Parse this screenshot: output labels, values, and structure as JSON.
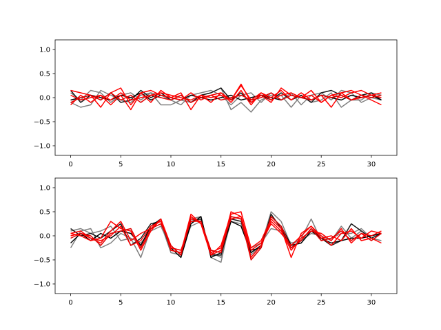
{
  "chart_data": [
    {
      "type": "line",
      "panel": "top",
      "title": "",
      "xlabel": "",
      "ylabel": "",
      "xlim": [
        -1.55,
        32.55
      ],
      "ylim": [
        -1.2,
        1.2
      ],
      "grid": false,
      "legend": "none",
      "x": [
        0,
        1,
        2,
        3,
        4,
        5,
        6,
        7,
        8,
        9,
        10,
        11,
        12,
        13,
        14,
        15,
        16,
        17,
        18,
        19,
        20,
        21,
        22,
        23,
        24,
        25,
        26,
        27,
        28,
        29,
        30,
        31
      ],
      "xticks": [
        0,
        5,
        10,
        15,
        20,
        25,
        30
      ],
      "xtick_labels": [
        "0",
        "5",
        "10",
        "15",
        "20",
        "25",
        "30"
      ],
      "yticks": [
        1.0,
        0.5,
        0.0,
        -0.5,
        -1.0
      ],
      "ytick_labels": [
        "1.0",
        "0.5",
        "0.0",
        "−0.5",
        "−1.0"
      ],
      "series": [
        {
          "color": "#808080",
          "values": [
            -0.1,
            -0.2,
            -0.15,
            0.15,
            0.05,
            -0.05,
            -0.1,
            0.05,
            0.1,
            -0.15,
            -0.15,
            -0.05,
            -0.1,
            0.05,
            0.1,
            0.2,
            -0.25,
            -0.1,
            -0.3,
            -0.05,
            0.05,
            0.05,
            -0.2,
            0.05,
            -0.1,
            -0.05,
            0.1,
            -0.2,
            -0.05,
            -0.05,
            0.1,
            0.05
          ]
        },
        {
          "color": "#808080",
          "values": [
            0.1,
            -0.05,
            0.15,
            0.1,
            -0.1,
            0.05,
            0.1,
            -0.05,
            0.1,
            0.05,
            -0.05,
            -0.15,
            0.05,
            0.1,
            0.15,
            0.05,
            -0.15,
            0.05,
            0.1,
            -0.1,
            0.1,
            -0.05,
            0.1,
            -0.15,
            0.05,
            0.1,
            -0.05,
            0.15,
            0.1,
            -0.1,
            0.0,
            -0.05
          ]
        },
        {
          "color": "#1a1a1a",
          "values": [
            0.15,
            -0.1,
            0.05,
            -0.05,
            0.1,
            -0.1,
            -0.05,
            0.15,
            0.0,
            0.1,
            -0.05,
            0.05,
            -0.1,
            0.05,
            0.1,
            0.2,
            -0.05,
            0.1,
            -0.1,
            0.05,
            -0.05,
            0.1,
            -0.05,
            0.05,
            -0.1,
            0.1,
            0.15,
            0.05,
            -0.05,
            0.05,
            0.1,
            -0.05
          ]
        },
        {
          "color": "#000000",
          "values": [
            -0.05,
            0.0,
            0.05,
            0.0,
            -0.05,
            0.05,
            0.0,
            0.1,
            -0.05,
            0.05,
            0.0,
            -0.05,
            0.05,
            0.0,
            -0.05,
            0.0,
            0.05,
            -0.05,
            0.0,
            0.05,
            0.0,
            -0.05,
            0.05,
            0.0,
            -0.05,
            0.05,
            0.0,
            -0.05,
            0.05,
            0.0,
            0.05,
            -0.05
          ]
        },
        {
          "color": "#ff0000",
          "values": [
            0.15,
            0.1,
            0.05,
            -0.2,
            0.1,
            0.2,
            -0.15,
            0.1,
            0.15,
            0.05,
            0.0,
            0.1,
            -0.25,
            0.05,
            -0.1,
            0.1,
            -0.05,
            0.28,
            -0.1,
            0.05,
            -0.1,
            0.2,
            0.05,
            0.0,
            0.05,
            -0.1,
            0.05,
            0.0,
            0.1,
            0.15,
            0.05,
            0.1
          ]
        },
        {
          "color": "#ff0000",
          "values": [
            -0.15,
            0.05,
            -0.1,
            0.05,
            -0.15,
            0.05,
            -0.25,
            0.1,
            -0.1,
            0.15,
            0.0,
            -0.05,
            0.1,
            -0.05,
            0.05,
            0.1,
            -0.1,
            0.15,
            -0.15,
            0.1,
            0.0,
            0.15,
            -0.05,
            0.1,
            -0.05,
            0.05,
            -0.2,
            0.1,
            0.15,
            0.05,
            -0.05,
            -0.15
          ]
        },
        {
          "color": "#ff0000",
          "values": [
            0.05,
            -0.05,
            0.0,
            0.05,
            -0.05,
            0.1,
            -0.05,
            0.0,
            0.05,
            0.1,
            0.05,
            0.0,
            -0.05,
            0.05,
            0.0,
            0.05,
            -0.05,
            0.25,
            -0.05,
            0.1,
            -0.05,
            0.05,
            0.1,
            0.0,
            0.15,
            -0.1,
            0.05,
            0.1,
            -0.05,
            0.0,
            0.05,
            0.0
          ]
        },
        {
          "color": "#e00000",
          "values": [
            -0.1,
            0.0,
            0.05,
            -0.05,
            0.1,
            -0.05,
            0.05,
            -0.1,
            0.05,
            0.0,
            -0.05,
            0.05,
            -0.1,
            0.0,
            0.05,
            -0.05,
            0.0,
            0.05,
            -0.05,
            0.0,
            0.1,
            -0.05,
            0.05,
            0.0,
            -0.05,
            0.05,
            0.0,
            0.05,
            -0.05,
            0.05,
            0.0,
            0.05
          ]
        }
      ]
    },
    {
      "type": "line",
      "panel": "bottom",
      "title": "",
      "xlabel": "",
      "ylabel": "",
      "xlim": [
        -1.55,
        32.55
      ],
      "ylim": [
        -1.2,
        1.2
      ],
      "grid": false,
      "legend": "none",
      "x": [
        0,
        1,
        2,
        3,
        4,
        5,
        6,
        7,
        8,
        9,
        10,
        11,
        12,
        13,
        14,
        15,
        16,
        17,
        18,
        19,
        20,
        21,
        22,
        23,
        24,
        25,
        26,
        27,
        28,
        29,
        30,
        31
      ],
      "xticks": [
        0,
        5,
        10,
        15,
        20,
        25,
        30
      ],
      "xtick_labels": [
        "0",
        "5",
        "10",
        "15",
        "20",
        "25",
        "30"
      ],
      "yticks": [
        1.0,
        0.5,
        0.0,
        -0.5,
        -1.0
      ],
      "ytick_labels": [
        "1.0",
        "0.5",
        "0.0",
        "−0.5",
        "−1.0"
      ],
      "series": [
        {
          "color": "#808080",
          "values": [
            -0.25,
            0.1,
            0.15,
            -0.25,
            -0.15,
            0.05,
            -0.05,
            -0.45,
            0.15,
            0.25,
            -0.35,
            -0.4,
            0.35,
            0.4,
            -0.45,
            -0.55,
            0.4,
            0.35,
            -0.4,
            -0.2,
            0.5,
            0.3,
            -0.2,
            -0.05,
            0.35,
            -0.1,
            -0.05,
            0.05,
            0.05,
            0.15,
            -0.05,
            -0.1
          ]
        },
        {
          "color": "#808080",
          "values": [
            0.1,
            0.15,
            0.05,
            0.1,
            0.2,
            -0.1,
            -0.05,
            -0.15,
            0.1,
            0.2,
            -0.25,
            -0.3,
            0.2,
            0.3,
            -0.35,
            -0.45,
            0.3,
            0.25,
            -0.25,
            -0.15,
            0.15,
            0.1,
            -0.15,
            -0.1,
            0.05,
            0.0,
            -0.1,
            0.2,
            -0.05,
            0.1,
            -0.05,
            0.05
          ]
        },
        {
          "color": "#1a1a1a",
          "values": [
            0.15,
            0.0,
            0.05,
            -0.05,
            0.1,
            0.25,
            -0.2,
            -0.05,
            0.25,
            0.3,
            -0.3,
            -0.35,
            0.3,
            0.35,
            -0.4,
            -0.4,
            0.35,
            0.3,
            -0.3,
            -0.25,
            0.45,
            0.15,
            -0.25,
            -0.1,
            0.15,
            -0.05,
            -0.2,
            -0.1,
            0.25,
            0.1,
            -0.05,
            0.05
          ]
        },
        {
          "color": "#000000",
          "values": [
            -0.15,
            0.05,
            -0.1,
            0.05,
            -0.05,
            0.1,
            0.05,
            -0.2,
            0.2,
            0.35,
            -0.25,
            -0.45,
            0.25,
            0.4,
            -0.45,
            -0.35,
            0.3,
            0.2,
            -0.35,
            -0.2,
            0.4,
            0.2,
            -0.2,
            -0.15,
            0.1,
            -0.05,
            -0.15,
            -0.1,
            -0.05,
            -0.05,
            0.0,
            0.05
          ]
        },
        {
          "color": "#ff0000",
          "values": [
            0.05,
            0.0,
            -0.1,
            -0.05,
            0.3,
            0.15,
            0.1,
            -0.3,
            0.1,
            0.35,
            -0.2,
            -0.4,
            0.4,
            0.25,
            -0.4,
            -0.2,
            0.45,
            0.5,
            -0.25,
            -0.1,
            0.35,
            0.15,
            -0.45,
            0.05,
            0.2,
            -0.05,
            0.0,
            -0.1,
            0.15,
            -0.1,
            -0.05,
            -0.15
          ]
        },
        {
          "color": "#ff0000",
          "values": [
            0.0,
            0.05,
            -0.05,
            -0.15,
            0.1,
            0.3,
            -0.1,
            0.05,
            0.15,
            0.35,
            -0.3,
            -0.35,
            0.45,
            0.25,
            -0.4,
            -0.3,
            0.5,
            0.4,
            -0.45,
            -0.2,
            0.3,
            0.1,
            -0.3,
            -0.05,
            0.1,
            0.05,
            -0.1,
            0.15,
            -0.15,
            0.05,
            0.0,
            0.1
          ]
        },
        {
          "color": "#ff0000",
          "values": [
            0.05,
            0.1,
            -0.05,
            -0.1,
            0.0,
            0.2,
            -0.2,
            -0.1,
            0.2,
            0.3,
            -0.25,
            -0.3,
            0.3,
            0.3,
            -0.35,
            -0.25,
            0.35,
            0.4,
            -0.3,
            -0.15,
            0.25,
            0.05,
            -0.2,
            0.0,
            0.2,
            0.0,
            -0.2,
            0.05,
            0.1,
            -0.05,
            0.1,
            0.05
          ]
        },
        {
          "color": "#e00000",
          "values": [
            -0.05,
            0.05,
            0.0,
            -0.2,
            0.05,
            0.1,
            0.15,
            -0.25,
            0.15,
            0.25,
            -0.2,
            -0.4,
            0.35,
            0.3,
            -0.3,
            -0.35,
            0.4,
            0.35,
            -0.5,
            -0.25,
            0.4,
            0.2,
            -0.25,
            -0.1,
            0.15,
            -0.1,
            -0.05,
            0.1,
            -0.1,
            0.05,
            -0.1,
            0.05
          ]
        }
      ]
    }
  ]
}
